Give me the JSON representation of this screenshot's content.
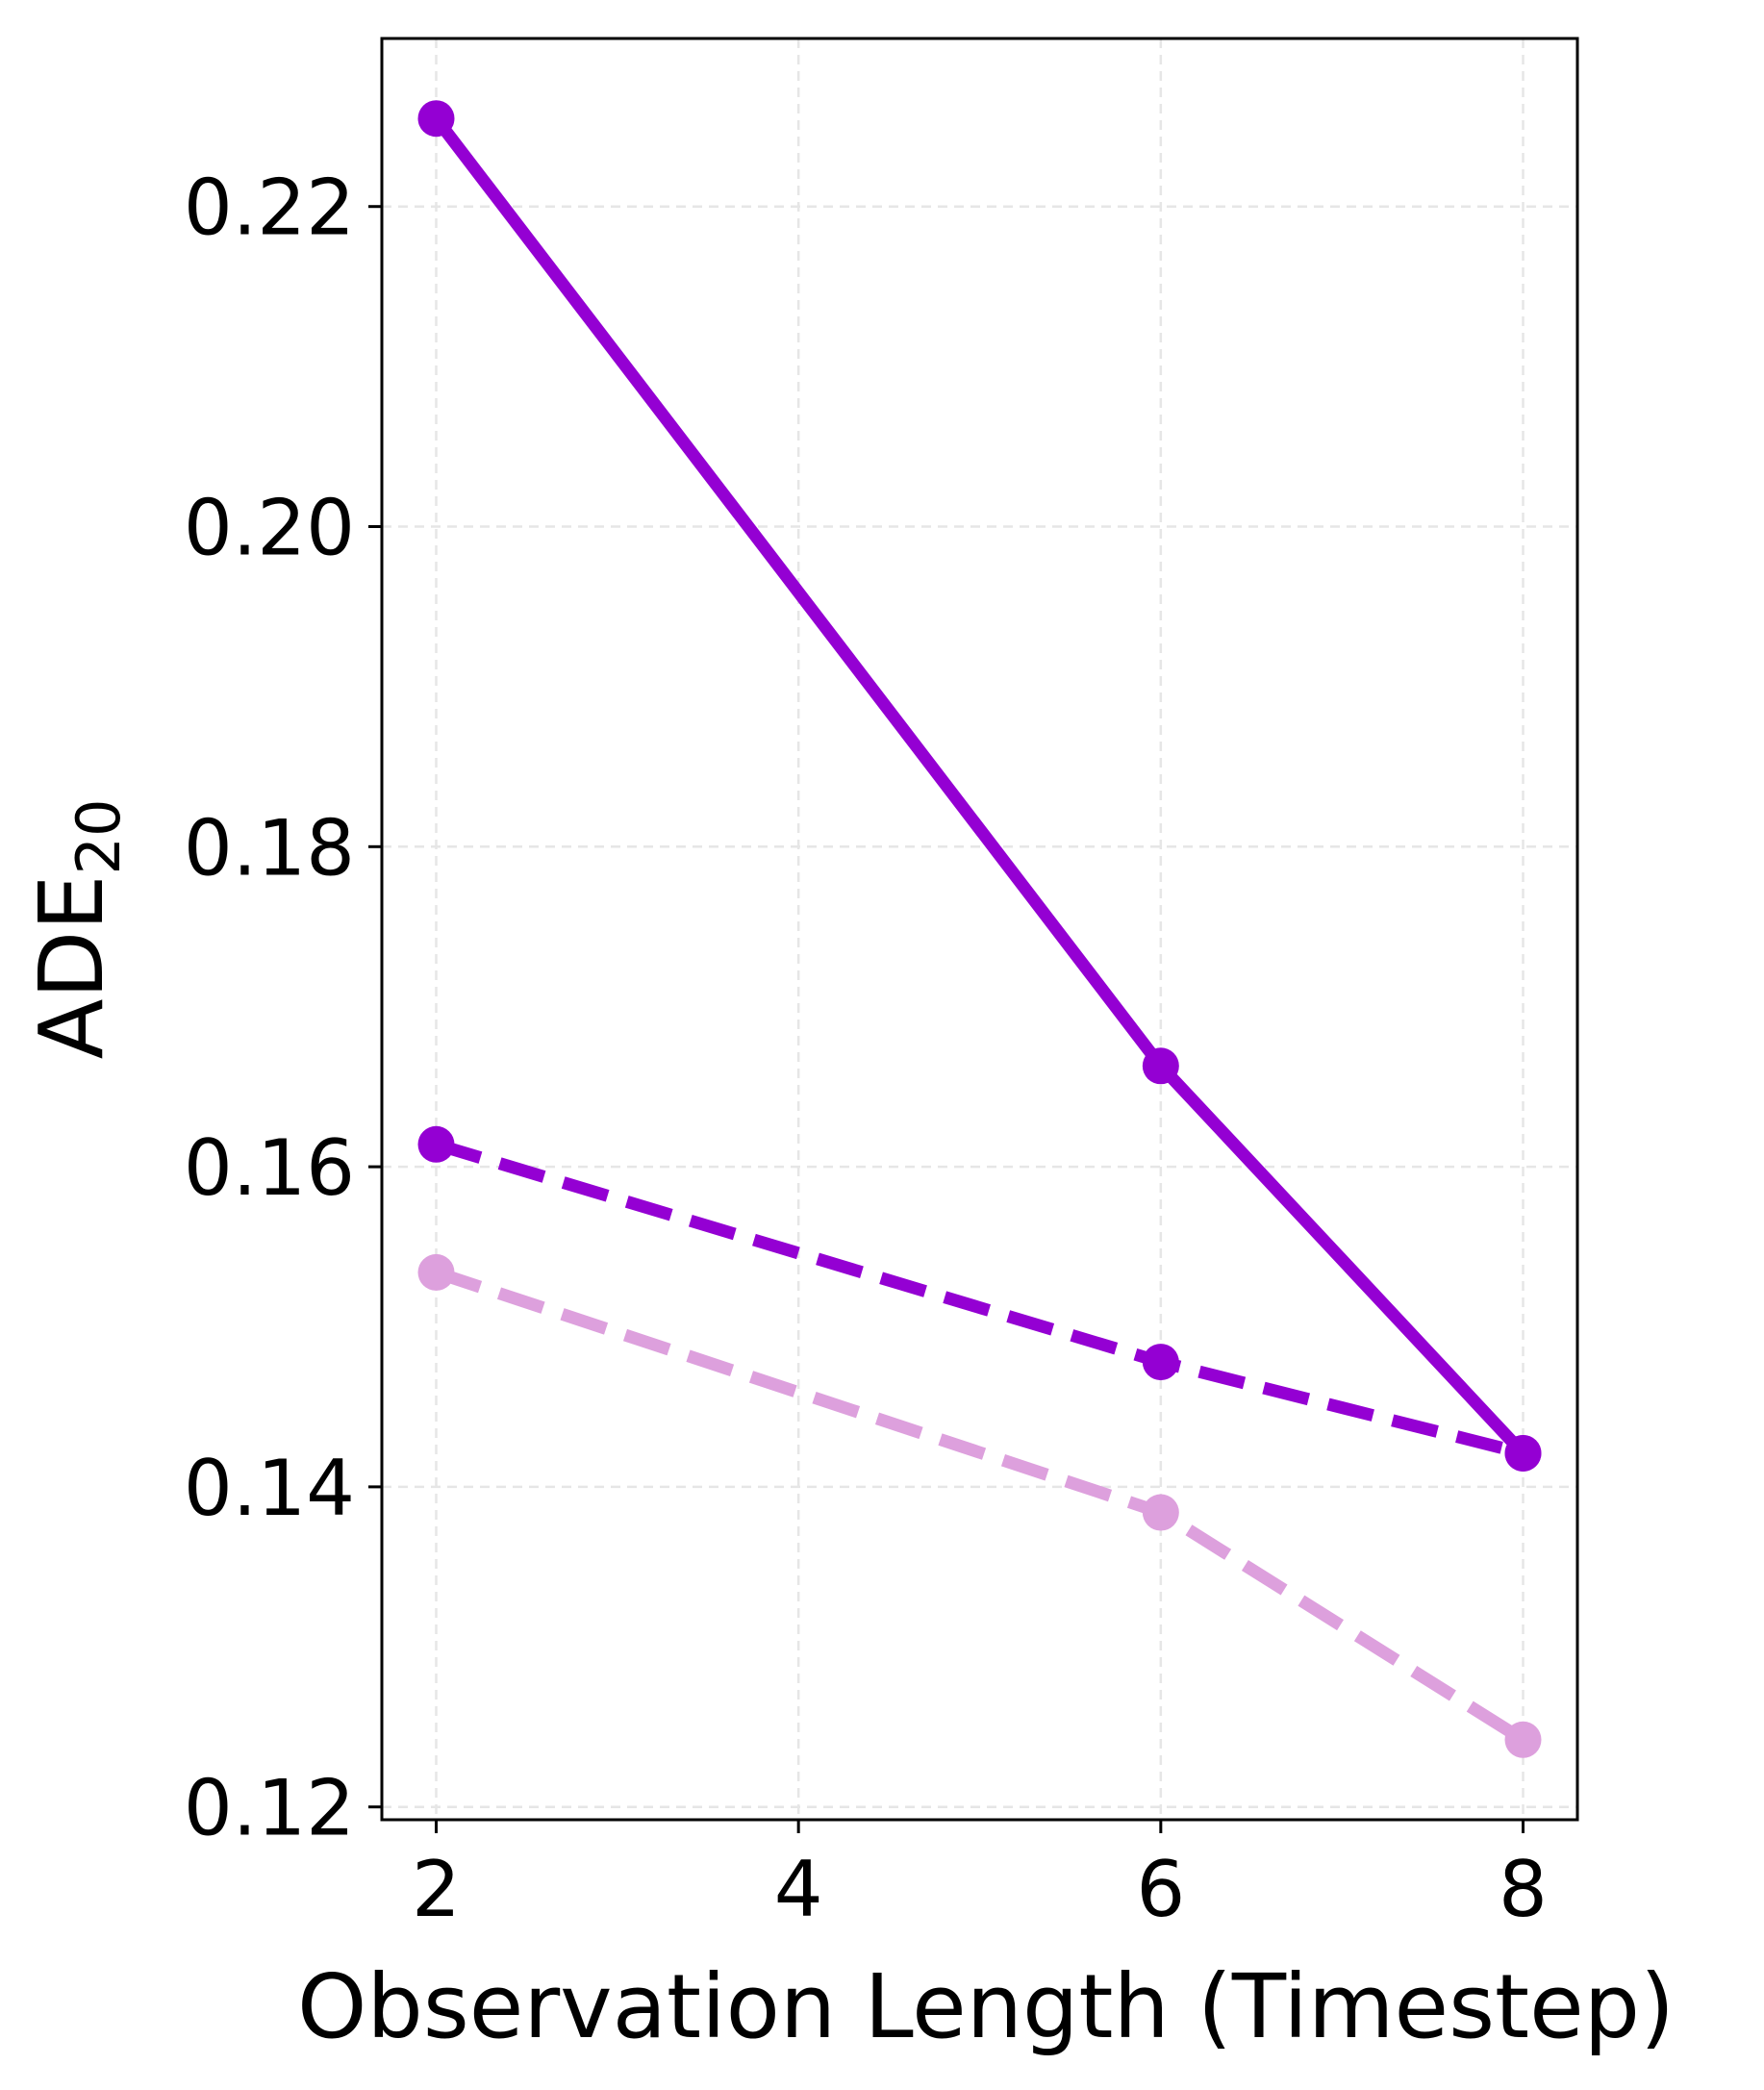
{
  "chart_data": {
    "type": "line",
    "xlabel": "Observation Length (Timestep)",
    "ylabel": {
      "main": "ADE",
      "subscript": "20"
    },
    "xlim": [
      1.7,
      8.3
    ],
    "ylim": [
      0.1192,
      0.2305
    ],
    "x_ticks": [
      2,
      4,
      6,
      8
    ],
    "y_ticks": [
      0.12,
      0.14,
      0.16,
      0.18,
      0.2,
      0.22
    ],
    "x_tick_labels": [
      "2",
      "4",
      "6",
      "8"
    ],
    "y_tick_labels": [
      "0.12",
      "0.14",
      "0.16",
      "0.18",
      "0.20",
      "0.22"
    ],
    "grid": true,
    "series": [
      {
        "x": [
          2,
          6,
          8
        ],
        "values": [
          0.2255,
          0.1663,
          0.1421
        ],
        "color": "#9400d3",
        "linestyle": "solid"
      },
      {
        "x": [
          2,
          6,
          8
        ],
        "values": [
          0.1614,
          0.1478,
          0.1421
        ],
        "color": "#9400d3",
        "linestyle": "dashed"
      },
      {
        "x": [
          2,
          6,
          8
        ],
        "values": [
          0.1534,
          0.1384,
          0.1242
        ],
        "color": "#dda0dd",
        "linestyle": "dashed"
      }
    ]
  }
}
